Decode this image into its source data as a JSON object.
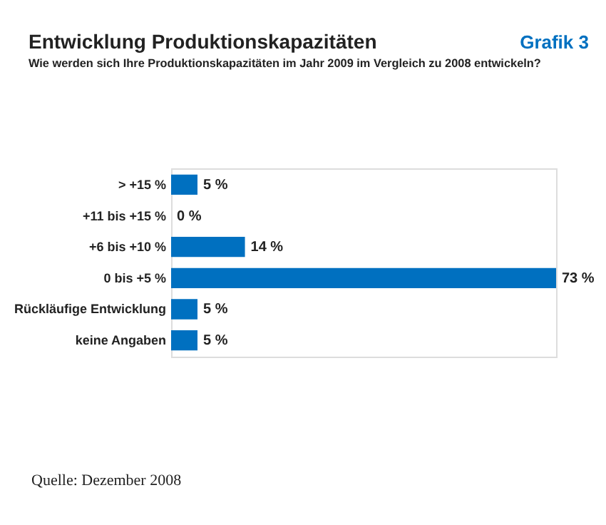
{
  "chart_data": {
    "type": "bar",
    "orientation": "horizontal",
    "title": "Entwicklung Produktionskapazitäten",
    "subtitle": "Wie werden sich Ihre Produktionskapazitäten im Jahr 2009 im Vergleich zu 2008 entwickeln?",
    "categories": [
      "> +15 %",
      "+11 bis +15 %",
      "+6 bis +10 %",
      "0 bis +5 %",
      "Rückläufige Entwicklung",
      "keine Angaben"
    ],
    "values": [
      5,
      0,
      14,
      73,
      5,
      5
    ],
    "value_labels": [
      "5 %",
      "0 %",
      "14 %",
      "73 %",
      "5 %",
      "5 %"
    ],
    "color": "#0070c0",
    "annotations": [
      "Grafik 3",
      "Quelle: Dezember 2008"
    ]
  }
}
